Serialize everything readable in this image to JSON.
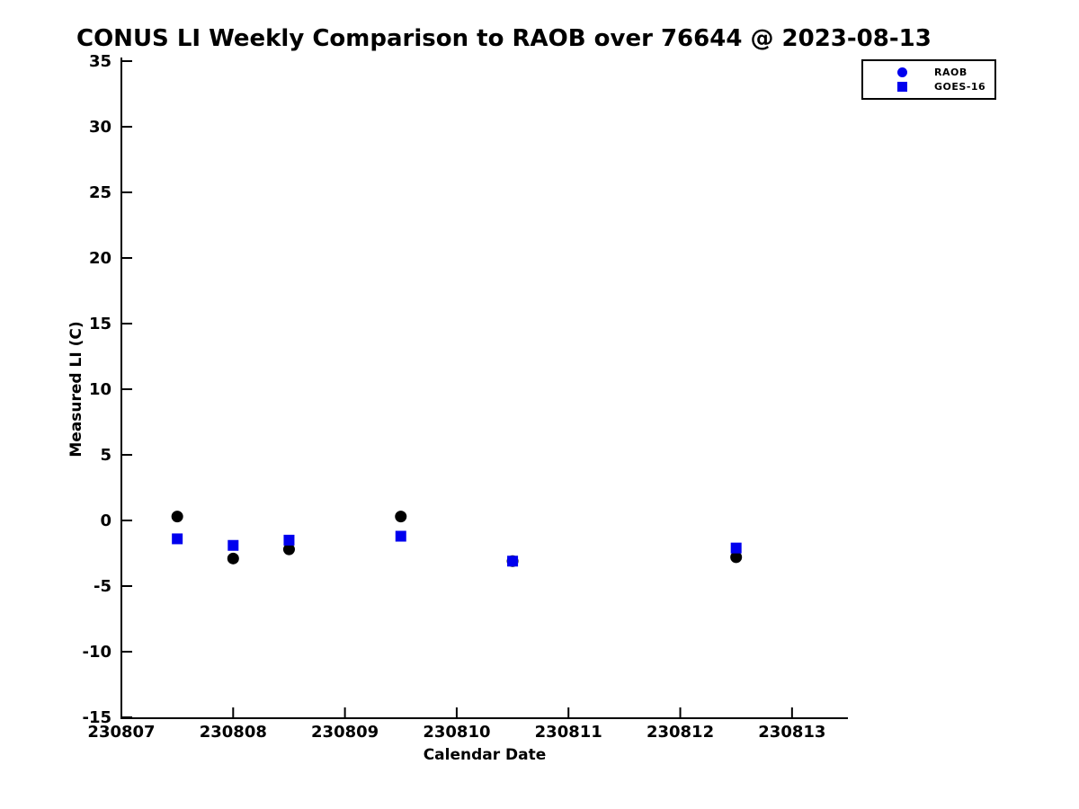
{
  "chart_data": {
    "type": "scatter",
    "title": "CONUS LI Weekly Comparison to RAOB over 76644 @ 2023-08-13",
    "xlabel": "Calendar Date",
    "ylabel": "Measured LI (C)",
    "xlim": [
      230807,
      230813.5
    ],
    "ylim": [
      -15,
      35
    ],
    "x_ticks": [
      230807,
      230808,
      230809,
      230810,
      230811,
      230812,
      230813
    ],
    "y_ticks": [
      -15,
      -10,
      -5,
      0,
      5,
      10,
      15,
      20,
      25,
      30,
      35
    ],
    "grid": false,
    "legend_position": "upper-right-outside-boxed",
    "axis_color": "#000000",
    "series": [
      {
        "name": "RAOB",
        "marker": "circle",
        "color": "#000000",
        "legend_color": "#0000ee",
        "x": [
          230807.5,
          230808.0,
          230808.5,
          230809.5,
          230810.5,
          230812.5
        ],
        "y": [
          0.3,
          -2.9,
          -2.2,
          0.3,
          -3.1,
          -2.8
        ]
      },
      {
        "name": "GOES-16",
        "marker": "square",
        "color": "#0000ee",
        "legend_color": "#0000ee",
        "x": [
          230807.5,
          230808.0,
          230808.5,
          230809.5,
          230810.5,
          230812.5
        ],
        "y": [
          -1.4,
          -1.9,
          -1.5,
          -1.2,
          -3.1,
          -2.1
        ]
      }
    ]
  },
  "legend": {
    "items": [
      {
        "label": "RAOB",
        "icon": "circle-marker-icon",
        "color": "#0000ee"
      },
      {
        "label": "GOES-16",
        "icon": "square-marker-icon",
        "color": "#0000ee"
      }
    ]
  }
}
